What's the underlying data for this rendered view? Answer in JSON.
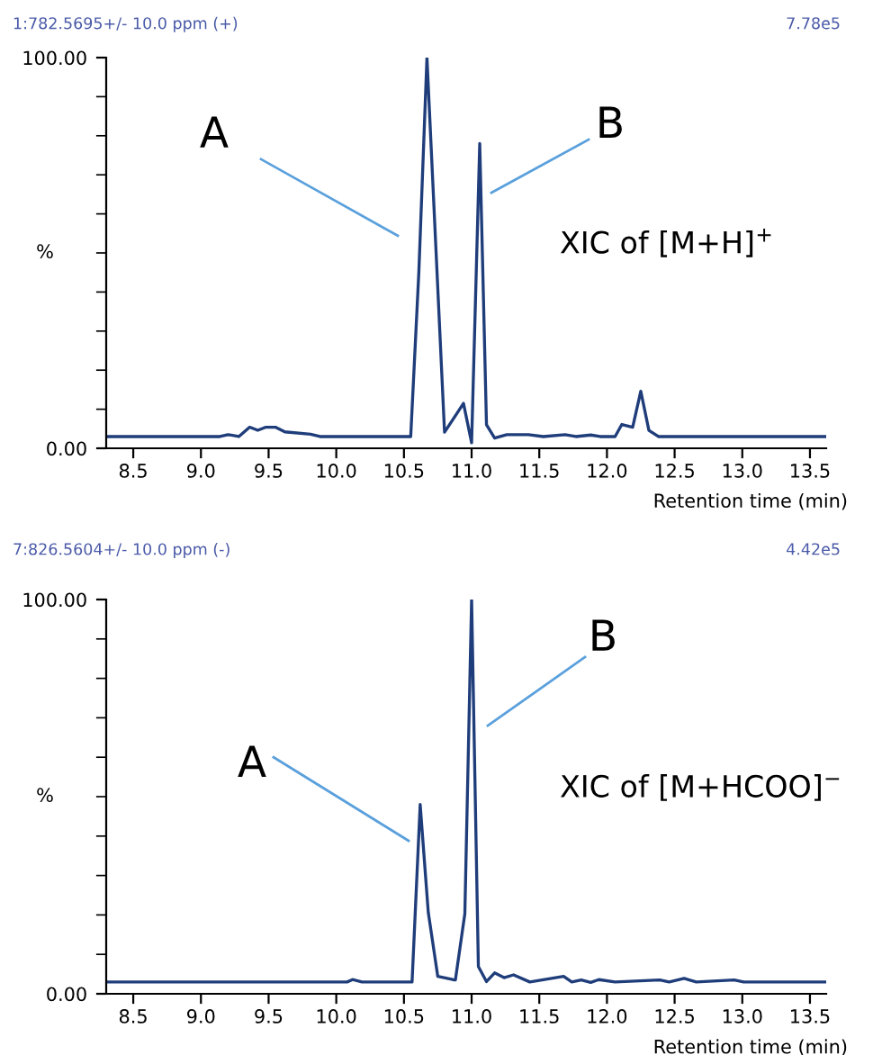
{
  "chart_data": [
    {
      "type": "line",
      "title": "1:782.5695+/- 10.0 ppm (+)",
      "subtitle": "7.78e5",
      "ylabel": "%",
      "xlabel": "Retention time (min)",
      "annotations": [
        "A",
        "B",
        "XIC of [M+H]$^{+}$"
      ],
      "series": [
        {
          "color": "#1f3d7a",
          "x": [
            8.3,
            9.14,
            9.2,
            9.28,
            9.36,
            9.42,
            9.48,
            9.55,
            9.62,
            9.81,
            9.88,
            10.55,
            10.61,
            10.67,
            10.8,
            10.94,
            11.0,
            11.06,
            11.11,
            11.17,
            11.26,
            11.42,
            11.53,
            11.69,
            11.77,
            11.88,
            11.95,
            12.06,
            12.11,
            12.19,
            12.25,
            12.31,
            12.38,
            13.62
          ],
          "values": [
            3,
            3,
            3.5,
            3,
            5.4,
            4.6,
            5.4,
            5.4,
            4.2,
            3.6,
            3,
            3,
            45,
            100,
            4.1,
            11.5,
            1.4,
            78,
            6,
            2.6,
            3.5,
            3.5,
            3,
            3.5,
            3,
            3.4,
            3,
            3,
            6.1,
            5.4,
            14.6,
            4.6,
            3,
            3
          ]
        }
      ],
      "xlim": [
        8.3,
        13.62
      ],
      "ylim": [
        0,
        100
      ],
      "xticks": [
        {
          "value": 8.5,
          "label": "8.5"
        },
        {
          "value": 9,
          "label": "9.0"
        },
        {
          "value": 9.5,
          "label": "9.5"
        },
        {
          "value": 10,
          "label": "10.0"
        },
        {
          "value": 10.5,
          "label": "10.5"
        },
        {
          "value": 11,
          "label": "11.0"
        },
        {
          "value": 11.5,
          "label": "11.5"
        },
        {
          "value": 12,
          "label": "12.0"
        },
        {
          "value": 12.5,
          "label": "12.5"
        },
        {
          "value": 13,
          "label": "13.0"
        },
        {
          "value": 13.5,
          "label": "13.5"
        }
      ],
      "yticks": [
        {
          "value": 0,
          "label": "0.00"
        },
        {
          "value": 10,
          "label": null
        },
        {
          "value": 20,
          "label": null
        },
        {
          "value": 30,
          "label": null
        },
        {
          "value": 40,
          "label": null
        },
        {
          "value": 50,
          "label": null
        },
        {
          "value": 60,
          "label": null
        },
        {
          "value": 70,
          "label": null
        },
        {
          "value": 80,
          "label": null
        },
        {
          "value": 90,
          "label": null
        },
        {
          "value": 100,
          "label": "100.00"
        }
      ],
      "grid": false,
      "legend": false
    },
    {
      "type": "line",
      "title": "7:826.5604+/- 10.0 ppm (-)",
      "subtitle": "4.42e5",
      "ylabel": "%",
      "xlabel": "Retention time (min)",
      "annotations": [
        "A",
        "B",
        "XIC of [M+HCOO]$^{−}$"
      ],
      "series": [
        {
          "color": "#1f3d7a",
          "x": [
            8.3,
            10.08,
            10.12,
            10.19,
            10.56,
            10.62,
            10.68,
            10.75,
            10.86,
            10.88,
            10.95,
            11.0,
            11.05,
            11.11,
            11.17,
            11.24,
            11.31,
            11.43,
            11.68,
            11.74,
            11.81,
            11.88,
            11.94,
            12.06,
            12.39,
            12.46,
            12.57,
            12.66,
            12.94,
            13.01,
            13.62
          ],
          "values": [
            3,
            3,
            3.6,
            3,
            3,
            48,
            20.6,
            4.4,
            3.6,
            3.5,
            20.3,
            100,
            6.9,
            3.1,
            5.3,
            4.1,
            4.8,
            3,
            4.4,
            3,
            3.5,
            2.9,
            3.6,
            3,
            3.5,
            3,
            3.9,
            3,
            3.5,
            3,
            3
          ]
        }
      ],
      "xlim": [
        8.3,
        13.62
      ],
      "ylim": [
        0,
        100
      ],
      "xticks": [
        {
          "value": 8.5,
          "label": "8.5"
        },
        {
          "value": 9,
          "label": "9.0"
        },
        {
          "value": 9.5,
          "label": "9.5"
        },
        {
          "value": 10,
          "label": "10.0"
        },
        {
          "value": 10.5,
          "label": "10.5"
        },
        {
          "value": 11,
          "label": "11.0"
        },
        {
          "value": 11.5,
          "label": "11.5"
        },
        {
          "value": 12,
          "label": "12.0"
        },
        {
          "value": 12.5,
          "label": "12.5"
        },
        {
          "value": 13,
          "label": "13.0"
        },
        {
          "value": 13.5,
          "label": "13.5"
        }
      ],
      "yticks": [
        {
          "value": 0,
          "label": "0.00"
        },
        {
          "value": 10,
          "label": null
        },
        {
          "value": 20,
          "label": null
        },
        {
          "value": 30,
          "label": null
        },
        {
          "value": 40,
          "label": null
        },
        {
          "value": 50,
          "label": null
        },
        {
          "value": 60,
          "label": null
        },
        {
          "value": 70,
          "label": null
        },
        {
          "value": 80,
          "label": null
        },
        {
          "value": 90,
          "label": null
        },
        {
          "value": 100,
          "label": "100.00"
        }
      ],
      "grid": false,
      "legend": false
    }
  ]
}
